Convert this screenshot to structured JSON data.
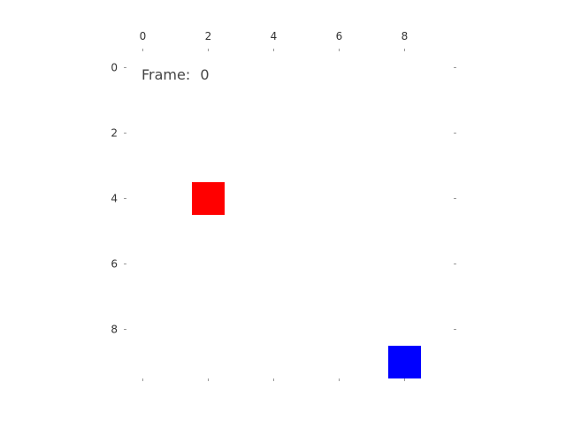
{
  "frame": {
    "label": "Frame:",
    "value": "0"
  },
  "axes": {
    "x_ticks": [
      "0",
      "2",
      "4",
      "6",
      "8"
    ],
    "y_ticks": [
      "0",
      "2",
      "4",
      "6",
      "8"
    ],
    "x_tick_values": [
      0,
      2,
      4,
      6,
      8
    ],
    "y_tick_values": [
      0,
      2,
      4,
      6,
      8
    ],
    "range": [
      -0.5,
      9.5
    ]
  },
  "entities": [
    {
      "name": "red-player",
      "color": "#ff0000",
      "x": 2,
      "y": 4
    },
    {
      "name": "blue-target",
      "color": "#0000ff",
      "x": 8,
      "y": 9
    }
  ]
}
